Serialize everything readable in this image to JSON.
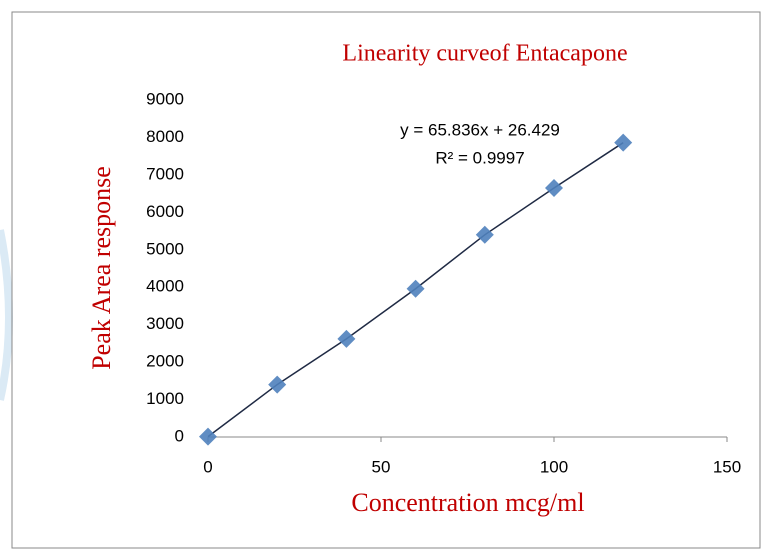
{
  "chart_data": {
    "type": "scatter",
    "title": "Linearity curveof Entacapone",
    "x_label": "Concentration mcg/ml",
    "y_label": "Peak Area response",
    "annotations": [
      "y = 65.836x + 26.429",
      "R² = 0.9997"
    ],
    "series": [
      {
        "color": "#4f81bd",
        "x": [
          0,
          20,
          40,
          60,
          80,
          100,
          120
        ],
        "values": [
          10,
          1400,
          2620,
          3960,
          5400,
          6650,
          7860
        ]
      }
    ],
    "trendline_color": "#1f2a44",
    "xlim": [
      0,
      150
    ],
    "xticks": [
      0,
      50,
      100,
      150
    ],
    "ylim": [
      0,
      9000
    ],
    "yticks": [
      0,
      1000,
      2000,
      3000,
      4000,
      5000,
      6000,
      7000,
      8000,
      9000
    ],
    "grid": false
  }
}
